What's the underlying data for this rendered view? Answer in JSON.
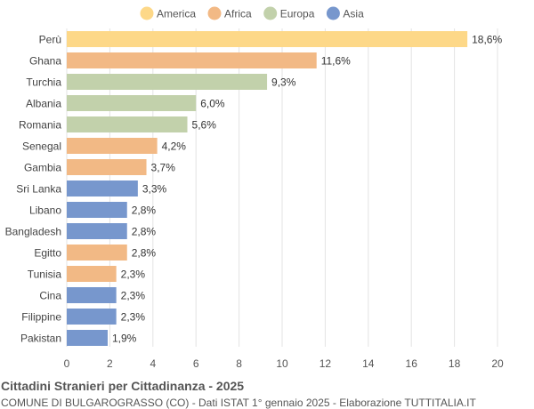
{
  "chart_data": {
    "type": "bar",
    "orientation": "horizontal",
    "title": "Cittadini Stranieri per Cittadinanza - 2025",
    "subtitle": "COMUNE DI BULGAROGRASSO (CO) - Dati ISTAT 1° gennaio 2025 - Elaborazione TUTTITALIA.IT",
    "legend": [
      {
        "name": "America",
        "color": "#fdd888"
      },
      {
        "name": "Africa",
        "color": "#f2b985"
      },
      {
        "name": "Europa",
        "color": "#c2d1ab"
      },
      {
        "name": "Asia",
        "color": "#7797cd"
      }
    ],
    "legend_position": "top",
    "categories": [
      "Perù",
      "Ghana",
      "Turchia",
      "Albania",
      "Romania",
      "Senegal",
      "Gambia",
      "Sri Lanka",
      "Libano",
      "Bangladesh",
      "Egitto",
      "Tunisia",
      "Cina",
      "Filippine",
      "Pakistan"
    ],
    "values": [
      18.6,
      11.6,
      9.3,
      6.0,
      5.6,
      4.2,
      3.7,
      3.3,
      2.8,
      2.8,
      2.8,
      2.3,
      2.3,
      2.3,
      1.9
    ],
    "value_labels": [
      "18,6%",
      "11,6%",
      "9,3%",
      "6,0%",
      "5,6%",
      "4,2%",
      "3,7%",
      "3,3%",
      "2,8%",
      "2,8%",
      "2,8%",
      "2,3%",
      "2,3%",
      "2,3%",
      "1,9%"
    ],
    "groups": [
      "America",
      "Africa",
      "Europa",
      "Europa",
      "Europa",
      "Africa",
      "Africa",
      "Asia",
      "Asia",
      "Asia",
      "Africa",
      "Africa",
      "Asia",
      "Asia",
      "Asia"
    ],
    "xlim": [
      0,
      20
    ],
    "xticks": [
      0,
      2,
      4,
      6,
      8,
      10,
      12,
      14,
      16,
      18,
      20
    ],
    "grid": true
  }
}
